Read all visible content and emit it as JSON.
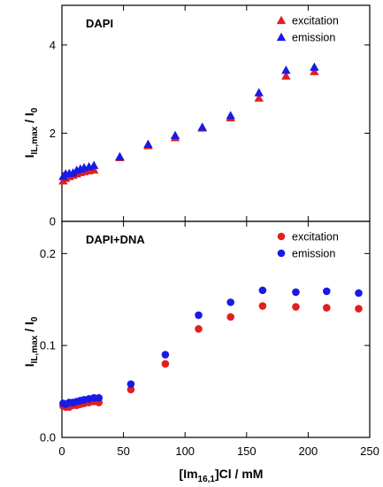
{
  "chart_data": [
    {
      "type": "scatter",
      "panel_label": "DAPI",
      "ylim": [
        0,
        4.9
      ],
      "yticks": [
        0,
        2,
        4
      ],
      "xlim": [
        0,
        250
      ],
      "legend_placement": "top-right",
      "series": [
        {
          "name": "excitation",
          "marker": "triangle",
          "color": "#e02020",
          "points": [
            [
              1,
              0.92
            ],
            [
              3,
              0.98
            ],
            [
              6,
              1.02
            ],
            [
              9,
              1.05
            ],
            [
              12,
              1.08
            ],
            [
              15,
              1.11
            ],
            [
              18,
              1.13
            ],
            [
              22,
              1.15
            ],
            [
              26,
              1.17
            ],
            [
              47,
              1.45
            ],
            [
              70,
              1.72
            ],
            [
              92,
              1.9
            ],
            [
              114,
              2.12
            ],
            [
              137,
              2.35
            ],
            [
              160,
              2.8
            ],
            [
              182,
              3.3
            ],
            [
              205,
              3.4
            ]
          ]
        },
        {
          "name": "emission",
          "marker": "triangle",
          "color": "#1a1ae6",
          "points": [
            [
              1,
              1.02
            ],
            [
              3,
              1.08
            ],
            [
              6,
              1.09
            ],
            [
              9,
              1.1
            ],
            [
              12,
              1.16
            ],
            [
              15,
              1.19
            ],
            [
              18,
              1.22
            ],
            [
              22,
              1.24
            ],
            [
              26,
              1.27
            ],
            [
              47,
              1.47
            ],
            [
              70,
              1.75
            ],
            [
              92,
              1.95
            ],
            [
              114,
              2.14
            ],
            [
              137,
              2.4
            ],
            [
              160,
              2.92
            ],
            [
              182,
              3.43
            ],
            [
              205,
              3.5
            ]
          ]
        }
      ]
    },
    {
      "type": "scatter",
      "panel_label": "DAPI+DNA",
      "ylim": [
        0,
        0.235
      ],
      "yticks": [
        0.0,
        0.1,
        0.2
      ],
      "xlim": [
        0,
        250
      ],
      "legend_placement": "top-right",
      "series": [
        {
          "name": "excitation",
          "marker": "circle",
          "color": "#e02020",
          "points": [
            [
              1,
              0.034
            ],
            [
              3,
              0.033
            ],
            [
              6,
              0.033
            ],
            [
              9,
              0.035
            ],
            [
              12,
              0.035
            ],
            [
              15,
              0.036
            ],
            [
              18,
              0.037
            ],
            [
              22,
              0.038
            ],
            [
              26,
              0.039
            ],
            [
              30,
              0.038
            ],
            [
              56,
              0.052
            ],
            [
              84,
              0.08
            ],
            [
              111,
              0.118
            ],
            [
              137,
              0.131
            ],
            [
              163,
              0.143
            ],
            [
              190,
              0.142
            ],
            [
              215,
              0.141
            ],
            [
              241,
              0.14
            ]
          ]
        },
        {
          "name": "emission",
          "marker": "circle",
          "color": "#1a1ae6",
          "points": [
            [
              1,
              0.037
            ],
            [
              3,
              0.036
            ],
            [
              6,
              0.038
            ],
            [
              9,
              0.038
            ],
            [
              12,
              0.039
            ],
            [
              15,
              0.04
            ],
            [
              18,
              0.041
            ],
            [
              22,
              0.042
            ],
            [
              26,
              0.043
            ],
            [
              30,
              0.043
            ],
            [
              56,
              0.058
            ],
            [
              84,
              0.09
            ],
            [
              111,
              0.133
            ],
            [
              137,
              0.147
            ],
            [
              163,
              0.16
            ],
            [
              190,
              0.158
            ],
            [
              215,
              0.159
            ],
            [
              241,
              0.157
            ]
          ]
        }
      ]
    }
  ],
  "x_axis": {
    "ticks": [
      0,
      50,
      100,
      150,
      200,
      250
    ],
    "title_pre": "[Im",
    "title_sub": "16,1",
    "title_post": "]Cl / mM"
  },
  "y_axis": {
    "title_main": "I",
    "title_sub": "IL,max",
    "title_slash": " / I",
    "title_sub0": "0"
  }
}
